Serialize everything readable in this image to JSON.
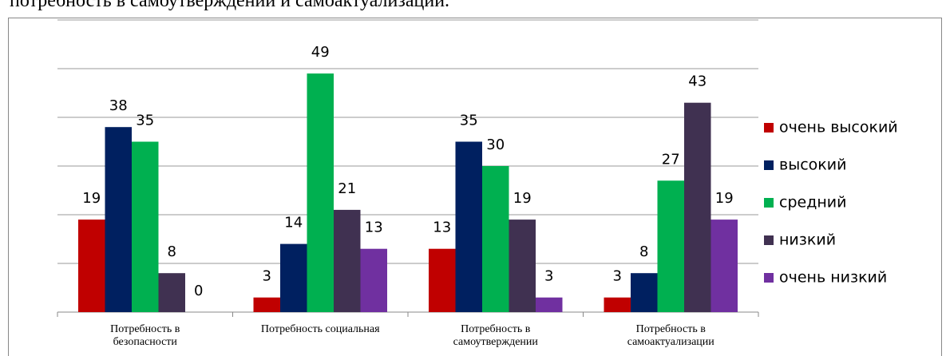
{
  "caption": "потребность в самоутверждении и самоактуализации.",
  "chart_data": {
    "type": "bar",
    "categories": [
      "Потребность в безопасности",
      "Потребность социальная",
      "Потребность в самоутверждении",
      "Потребность в самоактуализации"
    ],
    "series": [
      {
        "name": "очень высокий",
        "color": "#c00000",
        "values": [
          19,
          3,
          13,
          3
        ]
      },
      {
        "name": "высокий",
        "color": "#002060",
        "values": [
          38,
          14,
          35,
          8
        ]
      },
      {
        "name": "средний",
        "color": "#00b050",
        "values": [
          35,
          49,
          30,
          27
        ]
      },
      {
        "name": "низкий",
        "color": "#403151",
        "values": [
          8,
          21,
          19,
          43
        ]
      },
      {
        "name": "очень низкий",
        "color": "#7030a0",
        "values": [
          0,
          13,
          3,
          19
        ]
      }
    ],
    "ylim": [
      0,
      60
    ],
    "yticks": [
      0,
      10,
      20,
      30,
      40,
      50,
      60
    ],
    "grid": true,
    "legend": "right"
  }
}
